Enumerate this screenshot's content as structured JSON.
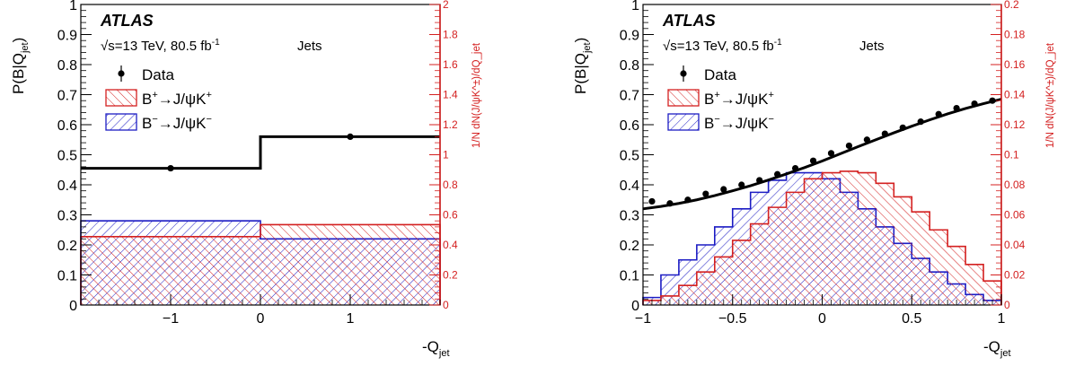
{
  "colors": {
    "data": "#000000",
    "bplus": "#d42020",
    "bminus": "#1c1cc4",
    "axis": "#000000",
    "right_axis": "#d42020"
  },
  "chart_data": [
    {
      "type": "bar",
      "panel": "left",
      "xlabel_main": "-Q",
      "xlabel_sub": "jet",
      "ylabel_main": "P(B|Q",
      "ylabel_sub": "jet",
      "ylabel_close": ")",
      "y2label": "1/N dN(J/ψK^±)/dQ_jet",
      "xlim": [
        -2,
        2
      ],
      "ylim": [
        0,
        1
      ],
      "y2lim": [
        0,
        2
      ],
      "x_ticks": [
        {
          "v": -1,
          "label": "−1"
        },
        {
          "v": 0,
          "label": "0"
        },
        {
          "v": 1,
          "label": "1"
        }
      ],
      "y_ticks": [
        {
          "v": 0,
          "label": "0"
        },
        {
          "v": 0.1,
          "label": "0.1"
        },
        {
          "v": 0.2,
          "label": "0.2"
        },
        {
          "v": 0.3,
          "label": "0.3"
        },
        {
          "v": 0.4,
          "label": "0.4"
        },
        {
          "v": 0.5,
          "label": "0.5"
        },
        {
          "v": 0.6,
          "label": "0.6"
        },
        {
          "v": 0.7,
          "label": "0.7"
        },
        {
          "v": 0.8,
          "label": "0.8"
        },
        {
          "v": 0.9,
          "label": "0.9"
        },
        {
          "v": 1,
          "label": "1"
        }
      ],
      "y2_ticks": [
        {
          "v": 0,
          "label": "0"
        },
        {
          "v": 0.2,
          "label": "0.2"
        },
        {
          "v": 0.4,
          "label": "0.4"
        },
        {
          "v": 0.6,
          "label": "0.6"
        },
        {
          "v": 0.8,
          "label": "0.8"
        },
        {
          "v": 1,
          "label": "1"
        },
        {
          "v": 1.2,
          "label": "1.2"
        },
        {
          "v": 1.4,
          "label": "1.4"
        },
        {
          "v": 1.6,
          "label": "1.6"
        },
        {
          "v": 1.8,
          "label": "1.8"
        },
        {
          "v": 2,
          "label": "2"
        }
      ],
      "atlas": "ATLAS",
      "energy_label": "√s=13 TeV, 80.5 fb",
      "energy_sup": "-1",
      "category": "Jets",
      "legend": {
        "data": "Data",
        "bplus_main": "B",
        "bplus_sup": "+",
        "bplus_arrow": "→J/ψK",
        "bplus_sup2": "+",
        "bminus_main": "B",
        "bminus_sup": "−",
        "bminus_arrow": "→J/ψK",
        "bminus_sup2": "−"
      },
      "bin_edges": [
        -2,
        0,
        2
      ],
      "bplus_values": [
        0.455,
        0.535
      ],
      "bminus_values": [
        0.56,
        0.44
      ],
      "data_x": [
        -1,
        1
      ],
      "data_y": [
        0.455,
        0.56
      ],
      "fit_step": [
        0.455,
        0.56
      ]
    },
    {
      "type": "bar",
      "panel": "right",
      "xlabel_main": "-Q",
      "xlabel_sub": "jet",
      "ylabel_main": "P(B|Q",
      "ylabel_sub": "jet",
      "ylabel_close": ")",
      "y2label": "1/N dN(J/ψK^±)/dQ_jet",
      "xlim": [
        -1,
        1
      ],
      "ylim": [
        0,
        1
      ],
      "y2lim": [
        0,
        0.2
      ],
      "x_ticks": [
        {
          "v": -1,
          "label": "−1"
        },
        {
          "v": -0.5,
          "label": "−0.5"
        },
        {
          "v": 0,
          "label": "0"
        },
        {
          "v": 0.5,
          "label": "0.5"
        },
        {
          "v": 1,
          "label": "1"
        }
      ],
      "y_ticks": [
        {
          "v": 0,
          "label": "0"
        },
        {
          "v": 0.1,
          "label": "0.1"
        },
        {
          "v": 0.2,
          "label": "0.2"
        },
        {
          "v": 0.3,
          "label": "0.3"
        },
        {
          "v": 0.4,
          "label": "0.4"
        },
        {
          "v": 0.5,
          "label": "0.5"
        },
        {
          "v": 0.6,
          "label": "0.6"
        },
        {
          "v": 0.7,
          "label": "0.7"
        },
        {
          "v": 0.8,
          "label": "0.8"
        },
        {
          "v": 0.9,
          "label": "0.9"
        },
        {
          "v": 1,
          "label": "1"
        }
      ],
      "y2_ticks": [
        {
          "v": 0,
          "label": "0"
        },
        {
          "v": 0.02,
          "label": "0.02"
        },
        {
          "v": 0.04,
          "label": "0.04"
        },
        {
          "v": 0.06,
          "label": "0.06"
        },
        {
          "v": 0.08,
          "label": "0.08"
        },
        {
          "v": 0.1,
          "label": "0.1"
        },
        {
          "v": 0.12,
          "label": "0.12"
        },
        {
          "v": 0.14,
          "label": "0.14"
        },
        {
          "v": 0.16,
          "label": "0.16"
        },
        {
          "v": 0.18,
          "label": "0.18"
        },
        {
          "v": 0.2,
          "label": "0.2"
        }
      ],
      "atlas": "ATLAS",
      "energy_label": "√s=13 TeV, 80.5 fb",
      "energy_sup": "-1",
      "category": "Jets",
      "legend": {
        "data": "Data",
        "bplus_main": "B",
        "bplus_sup": "+",
        "bplus_arrow": "→J/ψK",
        "bplus_sup2": "+",
        "bminus_main": "B",
        "bminus_sup": "−",
        "bminus_arrow": "→J/ψK",
        "bminus_sup2": "−"
      },
      "bin_edges": [
        -1,
        -0.9,
        -0.8,
        -0.7,
        -0.6,
        -0.5,
        -0.4,
        -0.3,
        -0.2,
        -0.1,
        0,
        0.1,
        0.2,
        0.3,
        0.4,
        0.5,
        0.6,
        0.7,
        0.8,
        0.9,
        1
      ],
      "bplus_values": [
        0.003,
        0.006,
        0.013,
        0.022,
        0.032,
        0.043,
        0.054,
        0.065,
        0.075,
        0.084,
        0.088,
        0.089,
        0.088,
        0.081,
        0.072,
        0.062,
        0.05,
        0.039,
        0.027,
        0.016
      ],
      "bminus_values": [
        0.005,
        0.02,
        0.03,
        0.04,
        0.052,
        0.064,
        0.075,
        0.083,
        0.088,
        0.088,
        0.084,
        0.075,
        0.064,
        0.052,
        0.041,
        0.031,
        0.022,
        0.014,
        0.007,
        0.003
      ],
      "data_x": [
        -0.95,
        -0.85,
        -0.75,
        -0.65,
        -0.55,
        -0.45,
        -0.35,
        -0.25,
        -0.15,
        -0.05,
        0.05,
        0.15,
        0.25,
        0.35,
        0.45,
        0.55,
        0.65,
        0.75,
        0.85,
        0.95
      ],
      "data_y": [
        0.345,
        0.338,
        0.35,
        0.37,
        0.385,
        0.4,
        0.415,
        0.435,
        0.455,
        0.48,
        0.505,
        0.53,
        0.55,
        0.57,
        0.59,
        0.61,
        0.635,
        0.655,
        0.67,
        0.68
      ],
      "fit_curve": {
        "x": [
          -1,
          -0.9,
          -0.8,
          -0.7,
          -0.6,
          -0.5,
          -0.4,
          -0.3,
          -0.2,
          -0.1,
          0,
          0.1,
          0.2,
          0.3,
          0.4,
          0.5,
          0.6,
          0.7,
          0.8,
          0.9,
          1
        ],
        "y": [
          0.32,
          0.328,
          0.338,
          0.35,
          0.364,
          0.38,
          0.397,
          0.416,
          0.436,
          0.457,
          0.479,
          0.503,
          0.527,
          0.55,
          0.573,
          0.595,
          0.616,
          0.636,
          0.654,
          0.67,
          0.685
        ]
      }
    }
  ]
}
